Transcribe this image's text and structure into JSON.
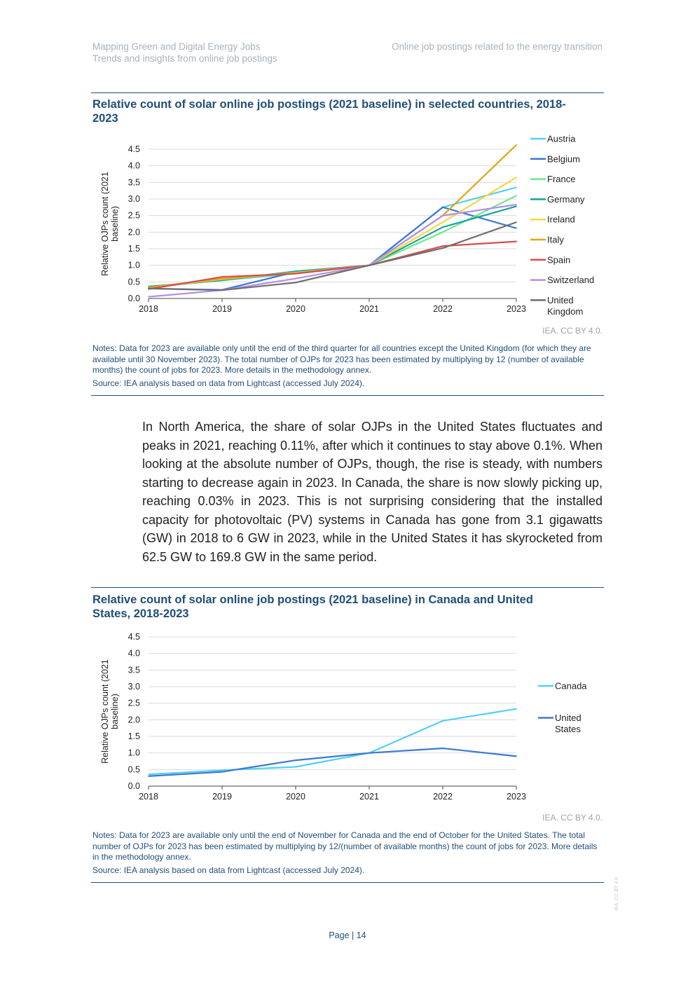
{
  "header": {
    "left_line1": "Mapping Green and Digital Energy Jobs",
    "left_line2": "Trends and insights from online job postings",
    "right": "Online job postings related to the energy transition"
  },
  "figure1": {
    "title": "Relative count of solar online job postings (2021 baseline) in selected countries, 2018-2023",
    "credit": "IEA. CC BY 4.0.",
    "notes": "Notes: Data for 2023 are available only until the end of the third quarter for all countries except the United Kingdom (for which they are available until 30 November 2023). The total number of OJPs for 2023 has been estimated by multiplying by 12 (number of available months) the count of jobs for 2023. More details in the methodology annex.",
    "source": "Source: IEA analysis based on data from Lightcast (accessed July 2024)."
  },
  "body": {
    "paragraph": "In North America, the share of solar OJPs in the United States fluctuates and peaks in 2021, reaching 0.11%, after which it continues to stay above 0.1%. When looking at the absolute number of OJPs, though, the rise is steady, with numbers starting to decrease again in 2023. In Canada, the share is now slowly picking up, reaching 0.03% in 2023. This is not surprising considering that the installed capacity for photovoltaic (PV) systems in Canada has gone from 3.1 gigawatts (GW) in 2018 to 6 GW in 2023, while in the United States it has skyrocketed from 62.5 GW to 169.8 GW in the same period."
  },
  "figure2": {
    "title": "Relative count of solar online job postings (2021 baseline) in Canada and United States, 2018-2023",
    "credit": "IEA. CC BY 4.0.",
    "notes": "Notes: Data for 2023 are available only until the end of November for Canada and the end of October for the United States. The total number of OJPs for 2023 has been estimated by multiplying by 12/(number of available months) the count of jobs for 2023. More details in the methodology annex.",
    "source": "Source: IEA analysis based on data from Lightcast (accessed July 2024)."
  },
  "footer": {
    "page_label": "Page | 14",
    "side_credit": "IEA. CC BY 4.0."
  },
  "chart_data": [
    {
      "type": "line",
      "title": "Relative count of solar online job postings (2021 baseline) in selected countries, 2018-2023",
      "xlabel": "",
      "ylabel": "Relative OJPs count (2021 baseline)",
      "x": [
        "2018",
        "2019",
        "2020",
        "2021",
        "2022",
        "2023"
      ],
      "ylim": [
        0,
        4.5
      ],
      "yticks": [
        "0.0",
        "0.5",
        "1.0",
        "1.5",
        "2.0",
        "2.5",
        "3.0",
        "3.5",
        "4.0",
        "4.5"
      ],
      "grid": true,
      "legend": "right",
      "series": [
        {
          "name": "Austria",
          "color": "#4fd0f7",
          "values": [
            0.33,
            0.55,
            0.75,
            1.0,
            2.75,
            3.35
          ]
        },
        {
          "name": "Belgium",
          "color": "#3b78d1",
          "values": [
            0.3,
            0.26,
            0.8,
            1.0,
            2.75,
            2.12
          ]
        },
        {
          "name": "France",
          "color": "#6ee58a",
          "values": [
            0.35,
            0.55,
            0.8,
            1.0,
            2.0,
            3.1
          ]
        },
        {
          "name": "Germany",
          "color": "#16a493",
          "values": [
            0.36,
            0.55,
            0.82,
            1.0,
            2.15,
            2.78
          ]
        },
        {
          "name": "Ireland",
          "color": "#f9d63b",
          "values": [
            0.32,
            0.58,
            0.78,
            1.0,
            2.3,
            3.65
          ]
        },
        {
          "name": "Italy",
          "color": "#e3a41a",
          "values": [
            0.33,
            0.6,
            0.76,
            1.0,
            2.5,
            4.63
          ]
        },
        {
          "name": "Spain",
          "color": "#d94c4c",
          "values": [
            0.28,
            0.65,
            0.75,
            1.0,
            1.58,
            1.72
          ]
        },
        {
          "name": "Switzerland",
          "color": "#b38ee8",
          "values": [
            0.05,
            0.25,
            0.6,
            1.0,
            2.5,
            2.83
          ]
        },
        {
          "name": "United Kingdom",
          "color": "#6d6d6d",
          "values": [
            0.3,
            0.25,
            0.48,
            1.0,
            1.52,
            2.3
          ]
        }
      ]
    },
    {
      "type": "line",
      "title": "Relative count of solar online job postings (2021 baseline) in Canada and United States, 2018-2023",
      "xlabel": "",
      "ylabel": "Relative OJPs count (2021 baseline)",
      "x": [
        "2018",
        "2019",
        "2020",
        "2021",
        "2022",
        "2023"
      ],
      "ylim": [
        0,
        4.5
      ],
      "yticks": [
        "0.0",
        "0.5",
        "1.0",
        "1.5",
        "2.0",
        "2.5",
        "3.0",
        "3.5",
        "4.0",
        "4.5"
      ],
      "grid": true,
      "legend": "right",
      "series": [
        {
          "name": "Canada",
          "color": "#4fd0f7",
          "values": [
            0.35,
            0.48,
            0.58,
            1.0,
            1.97,
            2.33
          ]
        },
        {
          "name": "United States",
          "color": "#3b78d1",
          "values": [
            0.3,
            0.43,
            0.78,
            1.0,
            1.14,
            0.9
          ]
        }
      ]
    }
  ]
}
